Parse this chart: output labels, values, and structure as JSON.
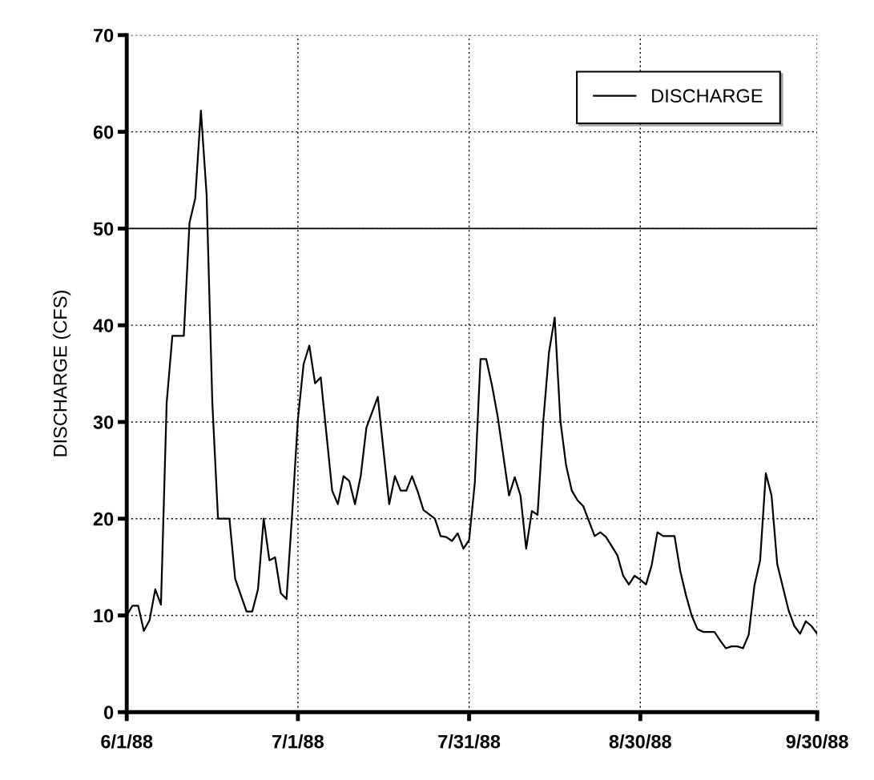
{
  "chart_data": {
    "type": "line",
    "ylabel": "DISCHARGE (CFS)",
    "x": [
      "1988-06-01",
      "1988-06-02",
      "1988-06-03",
      "1988-06-04",
      "1988-06-05",
      "1988-06-06",
      "1988-06-07",
      "1988-06-08",
      "1988-06-09",
      "1988-06-11",
      "1988-06-12",
      "1988-06-13",
      "1988-06-14",
      "1988-06-15",
      "1988-06-16",
      "1988-06-17",
      "1988-06-19",
      "1988-06-20",
      "1988-06-22",
      "1988-06-23",
      "1988-06-24",
      "1988-06-25",
      "1988-06-26",
      "1988-06-27",
      "1988-06-28",
      "1988-06-29",
      "1988-06-30",
      "1988-07-01",
      "1988-07-02",
      "1988-07-03",
      "1988-07-04",
      "1988-07-05",
      "1988-07-07",
      "1988-07-08",
      "1988-07-09",
      "1988-07-10",
      "1988-07-11",
      "1988-07-12",
      "1988-07-13",
      "1988-07-15",
      "1988-07-17",
      "1988-07-18",
      "1988-07-19",
      "1988-07-20",
      "1988-07-21",
      "1988-07-22",
      "1988-07-23",
      "1988-07-25",
      "1988-07-26",
      "1988-07-27",
      "1988-07-28",
      "1988-07-29",
      "1988-07-30",
      "1988-07-31",
      "1988-08-01",
      "1988-08-02",
      "1988-08-03",
      "1988-08-04",
      "1988-08-05",
      "1988-08-07",
      "1988-08-08",
      "1988-08-09",
      "1988-08-10",
      "1988-08-11",
      "1988-08-12",
      "1988-08-13",
      "1988-08-14",
      "1988-08-15",
      "1988-08-16",
      "1988-08-17",
      "1988-08-18",
      "1988-08-19",
      "1988-08-20",
      "1988-08-22",
      "1988-08-23",
      "1988-08-24",
      "1988-08-26",
      "1988-08-27",
      "1988-08-28",
      "1988-08-29",
      "1988-08-30",
      "1988-08-31",
      "1988-09-01",
      "1988-09-02",
      "1988-09-03",
      "1988-09-05",
      "1988-09-06",
      "1988-09-07",
      "1988-09-08",
      "1988-09-09",
      "1988-09-10",
      "1988-09-12",
      "1988-09-13",
      "1988-09-14",
      "1988-09-15",
      "1988-09-16",
      "1988-09-17",
      "1988-09-18",
      "1988-09-19",
      "1988-09-20",
      "1988-09-21",
      "1988-09-22",
      "1988-09-23",
      "1988-09-25",
      "1988-09-26",
      "1988-09-27",
      "1988-09-28",
      "1988-09-29",
      "1988-09-30"
    ],
    "series": [
      {
        "name": "DISCHARGE",
        "color": "#000000",
        "values": [
          10,
          11,
          11,
          8.4,
          9.5,
          12.7,
          11.1,
          32,
          38.9,
          38.9,
          50.6,
          53.1,
          62.2,
          53.5,
          32,
          20,
          20,
          13.8,
          10.4,
          10.4,
          12.7,
          20,
          15.7,
          16,
          12.3,
          11.7,
          20.6,
          30.3,
          36,
          37.9,
          34,
          34.6,
          22.9,
          21.5,
          24.4,
          23.9,
          21.5,
          24.4,
          29.4,
          32.6,
          21.5,
          24.4,
          22.9,
          22.9,
          24.4,
          22.8,
          20.9,
          20,
          18.2,
          18.1,
          17.7,
          18.5,
          16.9,
          17.8,
          23.7,
          36.5,
          36.5,
          33.8,
          30.6,
          22.4,
          24.3,
          22.4,
          16.9,
          20.8,
          20.4,
          30.1,
          37.2,
          40.8,
          30.1,
          25.5,
          22.9,
          21.9,
          21.3,
          18.2,
          18.6,
          18.1,
          16.2,
          14.1,
          13.2,
          14.1,
          13.7,
          13.2,
          15.2,
          18.6,
          18.2,
          18.2,
          14.6,
          12.1,
          10,
          8.6,
          8.3,
          8.3,
          7.4,
          6.6,
          6.8,
          6.8,
          6.6,
          8,
          13.1,
          15.7,
          24.7,
          22.4,
          15.3,
          10.5,
          8.9,
          8.1,
          9.4,
          8.9,
          8.1
        ]
      }
    ],
    "xlim": [
      "1988-06-01",
      "1988-09-30"
    ],
    "xticks": [
      {
        "value": "1988-06-01",
        "label": "6/1/88"
      },
      {
        "value": "1988-07-01",
        "label": "7/1/88"
      },
      {
        "value": "1988-07-31",
        "label": "7/31/88"
      },
      {
        "value": "1988-08-30",
        "label": "8/30/88"
      },
      {
        "value": "1988-09-30",
        "label": "9/30/88"
      }
    ],
    "ylim": [
      0,
      70
    ],
    "yticks": [
      0,
      10,
      20,
      30,
      40,
      50,
      60,
      70
    ],
    "ref_lines": [
      {
        "axis": "y",
        "value": 50,
        "color": "#000000",
        "line_style": "solid"
      }
    ],
    "grid": true,
    "legend": "top right",
    "marker": "none",
    "line_style": "solid"
  }
}
